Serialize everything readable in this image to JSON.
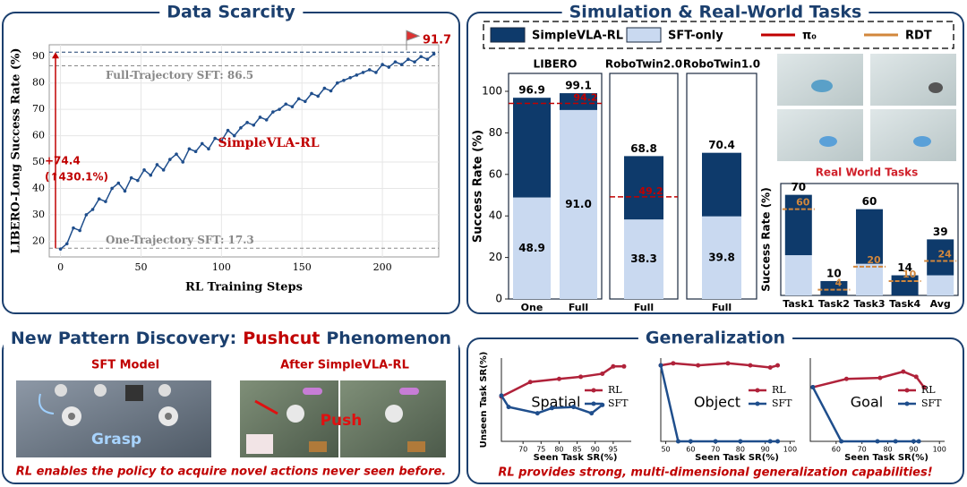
{
  "panels": {
    "data_scarcity": "Data Scarcity",
    "simulation": "Simulation & Real-World Tasks",
    "pattern_title": [
      "New Pattern Discovery:",
      "Pushcut",
      "Phenomenon"
    ],
    "generalization": "Generalization",
    "real_world_caption": "Real World Tasks",
    "sft_model": "SFT Model",
    "after_rl": "After SimpleVLA-RL",
    "grasp": "Grasp",
    "push": "Push",
    "pattern_caption": "RL enables the policy to acquire novel actions never seen before.",
    "generalization_caption": "RL provides strong, multi-dimensional generalization capabilities!"
  },
  "chart_data": [
    {
      "type": "line",
      "x": [
        0,
        4,
        8,
        12,
        16,
        20,
        24,
        28,
        32,
        36,
        40,
        44,
        48,
        52,
        56,
        60,
        64,
        68,
        72,
        76,
        80,
        84,
        88,
        92,
        96,
        100,
        104,
        108,
        112,
        116,
        120,
        124,
        128,
        132,
        136,
        140,
        144,
        148,
        152,
        156,
        160,
        164,
        168,
        172,
        176,
        180,
        184,
        188,
        192,
        196,
        200,
        204,
        208,
        212,
        216,
        220,
        224,
        228,
        232
      ],
      "series": [
        {
          "name": "SimpleVLA-RL",
          "color": "#1f4e8c",
          "values": [
            17,
            19,
            25,
            24,
            30,
            32,
            36,
            35,
            40,
            42,
            39,
            44,
            43,
            47,
            45,
            49,
            47,
            51,
            53,
            50,
            55,
            54,
            57,
            55,
            59,
            58,
            62,
            60,
            63,
            65,
            64,
            67,
            66,
            69,
            70,
            72,
            71,
            74,
            73,
            76,
            75,
            78,
            77,
            80,
            81,
            82,
            83,
            84,
            85,
            84,
            87,
            86,
            88,
            87,
            89,
            88,
            90,
            89,
            91
          ]
        }
      ],
      "xlabel": "RL Training Steps",
      "ylabel": "LIBERO-Long Success Rate (%)",
      "xlim": [
        -7,
        235
      ],
      "ylim": [
        14,
        94.5
      ],
      "xticks": [
        0,
        50,
        100,
        150,
        200
      ],
      "yticks": [
        20,
        30,
        40,
        50,
        60,
        70,
        80,
        90
      ],
      "grid": true,
      "reference_lines": [
        {
          "value": 86.5,
          "label": "Full-Trajectory SFT: 86.5"
        },
        {
          "value": 17.3,
          "label": "One-Trajectory SFT: 17.3"
        }
      ],
      "peak": 91.7,
      "gain_labels": [
        "+74.4",
        "(↑430.1%)"
      ]
    },
    {
      "type": "bar",
      "title": "LIBERO",
      "categories": [
        "One",
        "Full"
      ],
      "series": [
        {
          "name": "SFT-only",
          "color": "#c9d9f0",
          "values": [
            48.9,
            91
          ],
          "value_labels": [
            "48.9",
            "91.0"
          ]
        },
        {
          "name": "SimpleVLA-RL",
          "color": "#0e3a6b",
          "values": [
            48,
            8.1
          ]
        }
      ],
      "totals": [
        96.9,
        99.1
      ],
      "reference": {
        "name": "π₀",
        "color": "#c00000",
        "value": 94.2
      },
      "ylabel": "Success Rate (%)",
      "ylim": [
        0,
        105
      ],
      "yticks": [
        0,
        20,
        40,
        60,
        80,
        100
      ]
    },
    {
      "type": "bar",
      "title": "RoboTwin2.0",
      "categories": [
        "Full"
      ],
      "series": [
        {
          "name": "SFT-only",
          "color": "#c9d9f0",
          "values": [
            38.3
          ]
        },
        {
          "name": "SimpleVLA-RL",
          "color": "#0e3a6b",
          "values": [
            30.5
          ]
        }
      ],
      "totals": [
        68.8
      ],
      "reference": {
        "name": "π₀",
        "color": "#c00000",
        "value": 49.2
      },
      "ylim": [
        0,
        105
      ]
    },
    {
      "type": "bar",
      "title": "RoboTwin1.0",
      "categories": [
        "Full"
      ],
      "series": [
        {
          "name": "SFT-only",
          "color": "#c9d9f0",
          "values": [
            39.8
          ]
        },
        {
          "name": "SimpleVLA-RL",
          "color": "#0e3a6b",
          "values": [
            30.6
          ]
        }
      ],
      "totals": [
        70.4
      ],
      "ylim": [
        0,
        105
      ]
    },
    {
      "type": "bar",
      "categories": [
        "Task1",
        "Task2",
        "Task3",
        "Task4",
        "Avg"
      ],
      "series": [
        {
          "name": "SFT-only",
          "color": "#c9d9f0",
          "values": [
            28,
            0,
            22,
            0,
            14
          ]
        },
        {
          "name": "SimpleVLA-RL",
          "color": "#0e3a6b",
          "values": [
            42,
            10,
            38,
            14,
            25
          ]
        }
      ],
      "totals": [
        70,
        10,
        60,
        14,
        39
      ],
      "reference": {
        "name": "RDT",
        "color": "#d2873c",
        "values": [
          60,
          4,
          20,
          10,
          24
        ]
      },
      "ylabel": "Success Rate (%)",
      "ylim": [
        0,
        76
      ]
    },
    {
      "type": "line",
      "title": "Spatial",
      "xlabel": "Seen Task SR(%)",
      "ylabel": "Unseen Task SR(%)",
      "xlim": [
        64,
        100
      ],
      "ylim": [
        0,
        80
      ],
      "xticks": [
        70,
        75,
        80,
        85,
        90,
        95
      ],
      "series": [
        {
          "name": "RL",
          "color": "#b0223a",
          "x": [
            64,
            72,
            80,
            86,
            92,
            95,
            98
          ],
          "values": [
            43,
            57,
            60,
            62,
            65,
            72,
            72
          ]
        },
        {
          "name": "SFT",
          "color": "#1f4e8c",
          "x": [
            64,
            66,
            74,
            78,
            84,
            89,
            92
          ],
          "values": [
            44,
            33,
            27,
            32,
            33,
            27,
            35
          ]
        }
      ]
    },
    {
      "type": "line",
      "title": "Object",
      "xlabel": "Seen Task SR(%)",
      "xlim": [
        48,
        102
      ],
      "ylim": [
        0,
        80
      ],
      "xticks": [
        50,
        60,
        70,
        80,
        90,
        100
      ],
      "series": [
        {
          "name": "RL",
          "color": "#b0223a",
          "x": [
            48,
            53,
            63,
            75,
            84,
            92,
            95
          ],
          "values": [
            73,
            75,
            73,
            75,
            73,
            71,
            73
          ]
        },
        {
          "name": "SFT",
          "color": "#1f4e8c",
          "x": [
            48,
            55,
            60,
            70,
            80,
            92,
            95
          ],
          "values": [
            73,
            0,
            0,
            0,
            0,
            0,
            0
          ]
        }
      ]
    },
    {
      "type": "line",
      "title": "Goal",
      "xlabel": "Seen Task SR(%)",
      "xlim": [
        50,
        102
      ],
      "ylim": [
        0,
        80
      ],
      "xticks": [
        60,
        70,
        80,
        90,
        100
      ],
      "series": [
        {
          "name": "RL",
          "color": "#b0223a",
          "x": [
            51,
            64,
            77,
            86,
            91,
            94
          ],
          "values": [
            52,
            60,
            61,
            67,
            62,
            52
          ]
        },
        {
          "name": "SFT",
          "color": "#1f4e8c",
          "x": [
            51,
            62,
            76,
            83,
            90,
            92
          ],
          "values": [
            52,
            0,
            0,
            0,
            0,
            0
          ]
        }
      ]
    }
  ]
}
